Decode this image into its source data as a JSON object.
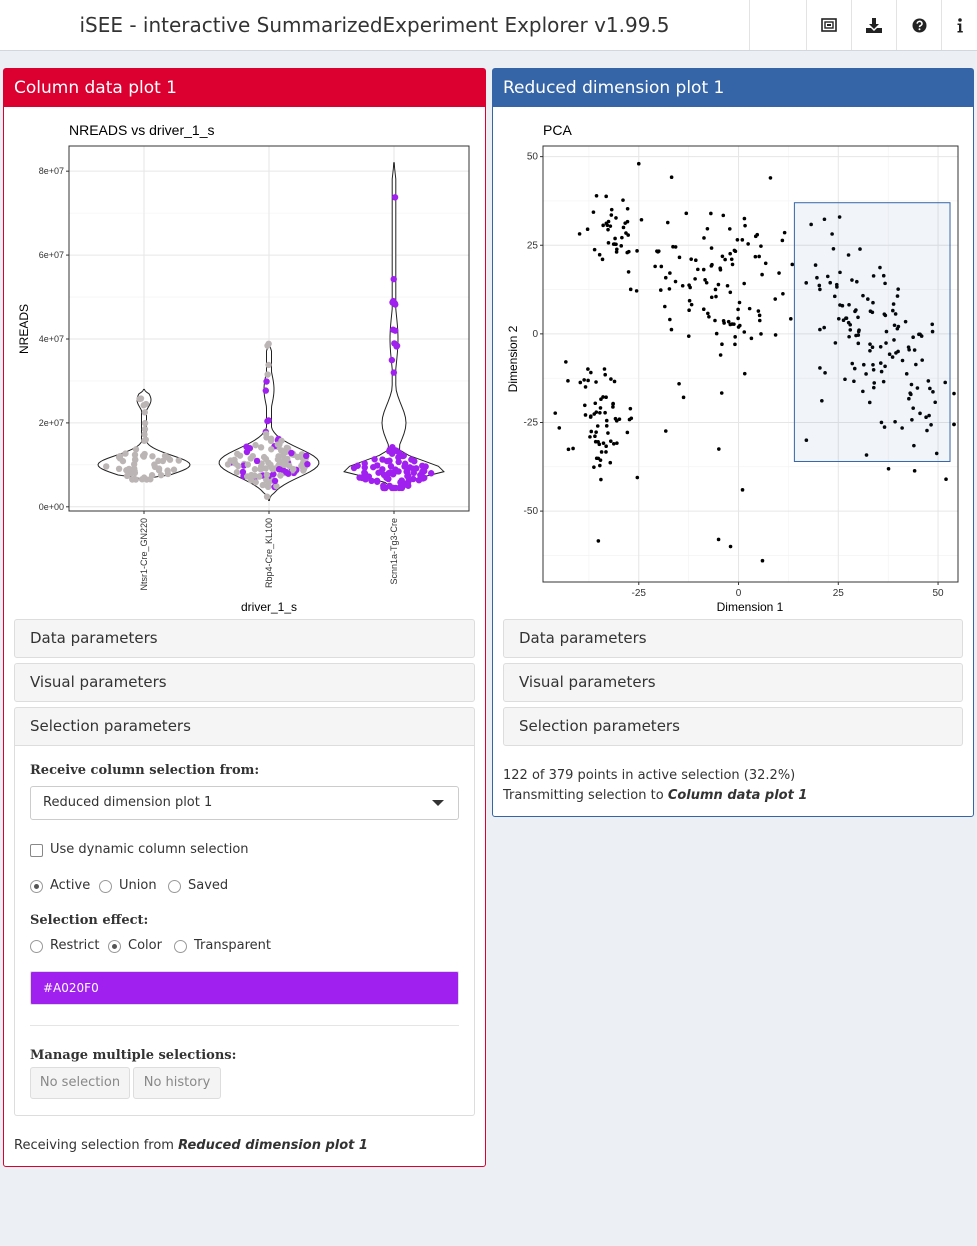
{
  "header": {
    "title": "iSEE - interactive SummarizedExperiment Explorer v1.99.5",
    "icons": [
      "screenshot-icon",
      "download-icon",
      "help-icon",
      "info-icon"
    ]
  },
  "colors": {
    "column_panel": "#dc0030",
    "reddim_panel": "#3565a7",
    "selection_color": "#A020F0",
    "gray_point": "#bcb5b5",
    "black_point": "#000000"
  },
  "left_panel": {
    "title": "Column data plot 1",
    "chart": {
      "plot_title": "NREADS vs driver_1_s",
      "xlabel": "driver_1_s",
      "ylabel": "NREADS",
      "y_ticks": [
        "0e+00",
        "2e+07",
        "4e+07",
        "6e+07",
        "8e+07"
      ],
      "categories": [
        "Ntsr1-Cre_GN220",
        "Rbp4-Cre_KL100",
        "Scnn1a-Tg3-Cre"
      ]
    },
    "sections": {
      "data": "Data parameters",
      "visual": "Visual parameters",
      "selection": "Selection parameters"
    },
    "selection": {
      "receive_label": "Receive column selection from:",
      "receive_value": "Reduced dimension plot 1",
      "dynamic_label": "Use dynamic column selection",
      "dynamic_checked": false,
      "type_options": [
        "Active",
        "Union",
        "Saved"
      ],
      "type_selected": "Active",
      "effect_label": "Selection effect:",
      "effect_options": [
        "Restrict",
        "Color",
        "Transparent"
      ],
      "effect_selected": "Color",
      "color_value": "#A020F0",
      "manage_label": "Manage multiple selections:",
      "no_selection": "No selection",
      "no_history": "No history"
    },
    "status_prefix": "Receiving selection from ",
    "status_source": "Reduced dimension plot 1"
  },
  "right_panel": {
    "title": "Reduced dimension plot 1",
    "chart": {
      "plot_title": "PCA",
      "xlabel": "Dimension 1",
      "ylabel": "Dimension 2",
      "x_ticks": [
        "-25",
        "0",
        "25",
        "50"
      ],
      "y_ticks": [
        "50",
        "25",
        "0",
        "-25",
        "-50"
      ]
    },
    "sections": {
      "data": "Data parameters",
      "visual": "Visual parameters",
      "selection": "Selection parameters"
    },
    "status_line1": "122 of 379 points in active selection (32.2%)",
    "status_prefix": "Transmitting selection to ",
    "status_target": "Column data plot 1"
  },
  "chart_data": [
    {
      "type": "violin",
      "title": "NREADS vs driver_1_s",
      "xlabel": "driver_1_s",
      "ylabel": "NREADS",
      "categories": [
        "Ntsr1-Cre_GN220",
        "Rbp4-Cre_KL100",
        "Scnn1a-Tg3-Cre"
      ],
      "ylim": [
        -1000000,
        86000000
      ],
      "max_values": [
        28000000,
        39000000,
        82000000
      ],
      "min_values": [
        6500000,
        1500000,
        4500000
      ],
      "selected_color": "#A020F0",
      "grid": true
    },
    {
      "type": "scatter",
      "title": "PCA",
      "xlabel": "Dimension 1",
      "ylabel": "Dimension 2",
      "xlim": [
        -49,
        55
      ],
      "ylim": [
        -70,
        53
      ],
      "brush": {
        "x": [
          14,
          53
        ],
        "y": [
          -36,
          37
        ]
      },
      "selected_points": 122,
      "total_points": 379,
      "grid": true
    }
  ]
}
